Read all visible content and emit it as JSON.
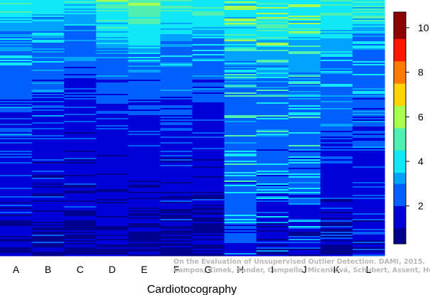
{
  "chart_data": {
    "type": "heatmap",
    "xlabel": "Cardiotocography",
    "categories": [
      "A",
      "B",
      "C",
      "D",
      "E",
      "F",
      "G",
      "H",
      "I",
      "J",
      "K",
      "L"
    ],
    "rows_note": "each column shows per-observation scores sorted descending (top = highest)",
    "column_profiles": [
      {
        "name": "A",
        "stops": [
          [
            0,
            4.2
          ],
          [
            0.12,
            3.1
          ],
          [
            0.35,
            2.3
          ],
          [
            0.6,
            1.6
          ],
          [
            0.8,
            1.2
          ],
          [
            1,
            0.9
          ]
        ],
        "streak_amp": 0.9
      },
      {
        "name": "B",
        "stops": [
          [
            0,
            4.0
          ],
          [
            0.12,
            3.0
          ],
          [
            0.35,
            2.2
          ],
          [
            0.6,
            1.5
          ],
          [
            0.8,
            1.1
          ],
          [
            1,
            0.9
          ]
        ],
        "streak_amp": 0.9
      },
      {
        "name": "C",
        "stops": [
          [
            0,
            3.8
          ],
          [
            0.1,
            3.0
          ],
          [
            0.3,
            2.0
          ],
          [
            0.55,
            1.4
          ],
          [
            0.75,
            1.0
          ],
          [
            1,
            0.8
          ]
        ],
        "streak_amp": 0.8
      },
      {
        "name": "D",
        "stops": [
          [
            0,
            4.9
          ],
          [
            0.12,
            3.6
          ],
          [
            0.3,
            2.4
          ],
          [
            0.55,
            1.6
          ],
          [
            0.75,
            1.1
          ],
          [
            1,
            0.9
          ]
        ],
        "streak_amp": 0.6
      },
      {
        "name": "E",
        "stops": [
          [
            0,
            5.1
          ],
          [
            0.1,
            4.4
          ],
          [
            0.22,
            2.9
          ],
          [
            0.45,
            1.9
          ],
          [
            0.7,
            1.2
          ],
          [
            1,
            0.9
          ]
        ],
        "streak_amp": 0.6
      },
      {
        "name": "F",
        "stops": [
          [
            0,
            4.4
          ],
          [
            0.15,
            3.2
          ],
          [
            0.35,
            2.2
          ],
          [
            0.6,
            1.5
          ],
          [
            0.8,
            1.0
          ],
          [
            1,
            0.8
          ]
        ],
        "streak_amp": 0.8
      },
      {
        "name": "G",
        "stops": [
          [
            0,
            4.4
          ],
          [
            0.15,
            3.0
          ],
          [
            0.35,
            2.1
          ],
          [
            0.6,
            1.4
          ],
          [
            0.8,
            1.0
          ],
          [
            1,
            0.8
          ]
        ],
        "streak_amp": 0.8
      },
      {
        "name": "H",
        "stops": [
          [
            0,
            4.1
          ],
          [
            0.25,
            3.1
          ],
          [
            0.55,
            2.6
          ],
          [
            0.8,
            2.3
          ],
          [
            0.95,
            2.0
          ],
          [
            1,
            1.8
          ]
        ],
        "streak_amp": 1.6
      },
      {
        "name": "I",
        "stops": [
          [
            0,
            4.3
          ],
          [
            0.2,
            3.3
          ],
          [
            0.5,
            2.7
          ],
          [
            0.75,
            2.1
          ],
          [
            0.9,
            1.4
          ],
          [
            1,
            1.0
          ]
        ],
        "streak_amp": 1.6
      },
      {
        "name": "J",
        "stops": [
          [
            0,
            4.3
          ],
          [
            0.2,
            3.3
          ],
          [
            0.5,
            2.7
          ],
          [
            0.75,
            2.1
          ],
          [
            0.9,
            1.5
          ],
          [
            1,
            1.0
          ]
        ],
        "streak_amp": 1.6
      },
      {
        "name": "K",
        "stops": [
          [
            0,
            4.5
          ],
          [
            0.15,
            3.4
          ],
          [
            0.35,
            2.6
          ],
          [
            0.55,
            2.0
          ],
          [
            0.8,
            1.2
          ],
          [
            1,
            0.8
          ]
        ],
        "streak_amp": 1.0
      },
      {
        "name": "L",
        "stops": [
          [
            0,
            4.2
          ],
          [
            0.15,
            3.1
          ],
          [
            0.35,
            2.4
          ],
          [
            0.55,
            1.9
          ],
          [
            0.8,
            1.3
          ],
          [
            1,
            1.0
          ]
        ],
        "streak_amp": 1.0
      }
    ],
    "color_scale": {
      "min": 0.3,
      "max": 10.7,
      "ticks": [
        2,
        4,
        6,
        8,
        10
      ],
      "bins": [
        {
          "from": 0.3,
          "to": 1.0,
          "color": "#00008f"
        },
        {
          "from": 1.0,
          "to": 2.0,
          "color": "#0000d8"
        },
        {
          "from": 2.0,
          "to": 3.0,
          "color": "#0060ff"
        },
        {
          "from": 3.0,
          "to": 3.5,
          "color": "#00a4ff"
        },
        {
          "from": 3.5,
          "to": 4.5,
          "color": "#10e8f8"
        },
        {
          "from": 4.5,
          "to": 5.5,
          "color": "#50f0b0"
        },
        {
          "from": 5.5,
          "to": 6.5,
          "color": "#a8ff50"
        },
        {
          "from": 6.5,
          "to": 7.5,
          "color": "#ffd400"
        },
        {
          "from": 7.5,
          "to": 8.5,
          "color": "#ff7a00"
        },
        {
          "from": 8.5,
          "to": 9.5,
          "color": "#ff1800"
        },
        {
          "from": 9.5,
          "to": 10.7,
          "color": "#8e0000"
        }
      ]
    },
    "legend_placement": "right",
    "grid": false
  },
  "watermark": {
    "line1": "On the Evaluation of Unsupervised Outlier Detection. DAMI, 2015.",
    "line2": "Campos, Zimek, Sander, Campello, Micenková, Schubert, Assent, Houle"
  }
}
